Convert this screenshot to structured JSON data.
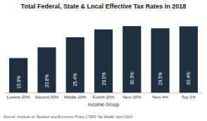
{
  "chart_data": {
    "type": "bar",
    "title": "Total Federal, State & Local Effective Tax Rates in 2018",
    "categories": [
      "Lowest 20%",
      "Second 20%",
      "Middle 20%",
      "Fourth 20%",
      "Next 15%",
      "Next 4%",
      "Top 1%"
    ],
    "values": [
      15.9,
      20.8,
      25.4,
      29.0,
      30.5,
      29.5,
      30.4
    ],
    "value_labels": [
      "15.9%",
      "20.8%",
      "25.4%",
      "29.0%",
      "30.5%",
      "29.5%",
      "30.4%"
    ],
    "data_labels": true,
    "color": "#1e3040",
    "xlabel": "Income Group",
    "annotations": [
      "Source: Institute on Taxation and Economic Policy (ITEP) Tax Model, April 2018"
    ],
    "ylim": [
      0,
      36
    ],
    "tick_labels": "x",
    "grid": false
  }
}
